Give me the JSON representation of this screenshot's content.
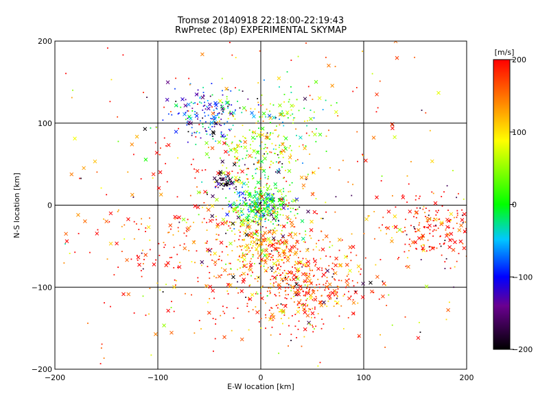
{
  "chart_data": {
    "type": "scatter",
    "title": "Tromsø 20140918 22:18:00-22:19:43",
    "subtitle": "RwPretec (8p) EXPERIMENTAL SKYMAP",
    "xlabel": "E-W location [km]",
    "ylabel": "N-S location [km]",
    "xlim": [
      -200,
      200
    ],
    "ylim": [
      -200,
      200
    ],
    "x_ticks": [
      -200,
      -100,
      0,
      100,
      200
    ],
    "y_ticks": [
      -200,
      -100,
      0,
      100,
      200
    ],
    "grid": true,
    "colorbar": {
      "label": "[m/s]",
      "range": [
        -200,
        200
      ],
      "ticks": [
        -200,
        -100,
        0,
        100,
        200
      ],
      "colormap": "rainbow (black-purple-blue-cyan-green-yellow-red)"
    },
    "marker_types": [
      "small dot",
      "x"
    ],
    "clusters": [
      {
        "x": 0,
        "y": 0,
        "spread": 15,
        "velocity": 0,
        "count": 350
      },
      {
        "x": 0,
        "y": -50,
        "spread": 20,
        "velocity": 120,
        "count": 250
      },
      {
        "x": 40,
        "y": -100,
        "spread": 30,
        "velocity": 180,
        "count": 400
      },
      {
        "x": 165,
        "y": -30,
        "spread": 25,
        "velocity": 200,
        "count": 200
      },
      {
        "x": -50,
        "y": 110,
        "spread": 20,
        "velocity": -90,
        "count": 180
      },
      {
        "x": -35,
        "y": 28,
        "spread": 6,
        "velocity": -200,
        "count": 50
      },
      {
        "x": 0,
        "y": 60,
        "spread": 25,
        "velocity": 50,
        "count": 200
      },
      {
        "x": -50,
        "y": -40,
        "spread": 60,
        "velocity": 200,
        "count": 250
      },
      {
        "x": 20,
        "y": 110,
        "spread": 20,
        "velocity": 30,
        "count": 80
      },
      {
        "x": 0,
        "y": 0,
        "spread": 140,
        "velocity": 150,
        "count": 500
      }
    ]
  }
}
